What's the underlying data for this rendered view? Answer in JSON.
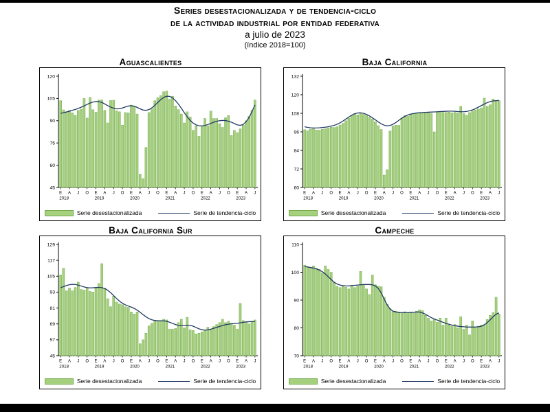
{
  "page": {
    "title_line1": "Series desestacionalizada y de tendencia-ciclo",
    "title_line2": "de la actividad industrial por entidad federativa",
    "subtitle": "a julio de 2023",
    "note": "(índice 2018=100)"
  },
  "legend": {
    "bars_label": "Serie desestacionalizada",
    "line_label": "Serie de tendencia-ciclo"
  },
  "colors": {
    "bar_fill": "#a5d07e",
    "bar_stroke": "#76ab4e",
    "trend_line": "#203a63",
    "axis": "#000000"
  },
  "chart_data": [
    {
      "type": "bar+line",
      "title": "Aguascalientes",
      "ylim": [
        45,
        120
      ],
      "yticks": [
        45,
        60,
        75,
        90,
        105,
        120
      ],
      "x_start": "2018-01",
      "x_end": "2023-07",
      "x_tick_letters": [
        "E",
        "A",
        "J",
        "O"
      ],
      "years": [
        2018,
        2019,
        2020,
        2021,
        2022,
        2023
      ],
      "series": [
        {
          "name": "Serie desestacionalizada",
          "kind": "bar",
          "values": [
            103.5,
            97.3,
            96,
            97,
            95.3,
            93.6,
            97,
            97.7,
            105,
            91.8,
            105.7,
            97.4,
            95.7,
            104,
            104,
            97,
            88.5,
            103.7,
            103.8,
            96.7,
            96,
            87,
            95.5,
            95.3,
            100.5,
            99.5,
            94.5,
            54,
            51,
            72,
            95.5,
            98,
            103.5,
            105.5,
            107,
            109.5,
            110,
            104.5,
            106.5,
            100,
            97.5,
            94.5,
            88.5,
            96,
            92.5,
            83.5,
            86.5,
            79.5,
            86,
            91.5,
            86.5,
            96.5,
            91.5,
            91.5,
            88,
            85.5,
            92,
            93.5,
            80,
            83.5,
            82,
            84.5,
            87,
            90,
            93,
            97,
            104
          ]
        },
        {
          "name": "Serie de tendencia-ciclo",
          "kind": "line",
          "values": [
            95,
            95.4,
            95.9,
            96.4,
            97,
            97.6,
            98.3,
            99.1,
            100,
            101,
            101.9,
            102.6,
            103,
            102.9,
            102.3,
            101.3,
            100.2,
            99.2,
            98.4,
            98,
            98.1,
            98.6,
            99.3,
            99.9,
            100.1,
            99.8,
            99,
            98,
            97.2,
            97,
            97.5,
            98.7,
            100.4,
            102.3,
            104.2,
            105.7,
            106.5,
            106.4,
            105.4,
            103.6,
            101.2,
            98.4,
            95.4,
            92.6,
            90.2,
            88.4,
            87.2,
            86.6,
            86.5,
            86.8,
            87.4,
            88.2,
            89,
            89.6,
            90,
            90.2,
            90.1,
            89.7,
            89,
            88.1,
            87.2,
            86.9,
            87.5,
            89.3,
            92.2,
            96.2,
            100.6
          ]
        }
      ]
    },
    {
      "type": "bar+line",
      "title": "Baja California",
      "ylim": [
        60,
        132
      ],
      "yticks": [
        60,
        72,
        84,
        96,
        108,
        120,
        132
      ],
      "x_start": "2018-01",
      "x_end": "2023-07",
      "x_tick_letters": [
        "E",
        "A",
        "J",
        "O"
      ],
      "years": [
        2018,
        2019,
        2020,
        2021,
        2022,
        2023
      ],
      "series": [
        {
          "name": "Serie desestacionalizada",
          "kind": "bar",
          "values": [
            97.4,
            96.7,
            97.7,
            98,
            97.2,
            97.1,
            97.7,
            98,
            98.5,
            99,
            98.8,
            99.3,
            100.4,
            101.5,
            103.2,
            104.8,
            106.6,
            107.9,
            107,
            108.3,
            107.3,
            106.6,
            105.5,
            104.3,
            102.5,
            100,
            97.5,
            68,
            71.5,
            96.5,
            99.8,
            100.3,
            100.2,
            105,
            106.5,
            106,
            107.5,
            107.8,
            108.2,
            108.5,
            108.3,
            108.6,
            108.4,
            107.8,
            96,
            108.8,
            109.3,
            108.6,
            108.5,
            108.8,
            108.3,
            108.6,
            108.2,
            112.5,
            107.8,
            106.8,
            108.5,
            109.5,
            110.2,
            110.8,
            111.5,
            117.8,
            112.5,
            113.5,
            117.2,
            115.8,
            116.2
          ]
        },
        {
          "name": "Serie de tendencia-ciclo",
          "kind": "line",
          "values": [
            99.3,
            98.9,
            98.6,
            98.5,
            98.5,
            98.6,
            98.8,
            99,
            99.3,
            99.7,
            100.2,
            100.9,
            101.8,
            103,
            104.3,
            105.6,
            106.8,
            107.7,
            108.2,
            108.3,
            108,
            107.3,
            106.3,
            105.1,
            103.8,
            102.4,
            101.2,
            100.3,
            99.9,
            100.1,
            100.9,
            102.1,
            103.5,
            104.9,
            106,
            106.9,
            107.5,
            107.9,
            108.2,
            108.4,
            108.5,
            108.6,
            108.7,
            108.8,
            108.9,
            109,
            109.1,
            109.2,
            109.3,
            109.4,
            109.4,
            109.3,
            109.1,
            109,
            109,
            109.2,
            109.6,
            110.2,
            111,
            112,
            113,
            114,
            114.9,
            115.6,
            116,
            116.2,
            116.3
          ]
        }
      ]
    },
    {
      "type": "bar+line",
      "title": "Baja California Sur",
      "ylim": [
        45,
        129
      ],
      "yticks": [
        45,
        57,
        69,
        81,
        93,
        105,
        117,
        129
      ],
      "x_start": "2018-01",
      "x_end": "2023-07",
      "x_tick_letters": [
        "E",
        "A",
        "J",
        "O"
      ],
      "years": [
        2018,
        2019,
        2020,
        2021,
        2022,
        2023
      ],
      "series": [
        {
          "name": "Serie desestacionalizada",
          "kind": "bar",
          "values": [
            106,
            111,
            94,
            96,
            94,
            96.5,
            100.5,
            95,
            94.5,
            96,
            93.5,
            93,
            96,
            99.5,
            114.5,
            96,
            88,
            82,
            90,
            85.5,
            84,
            83.5,
            82,
            81.5,
            78,
            76.5,
            78,
            54,
            57,
            62,
            67.5,
            69.5,
            71,
            71.5,
            71,
            72.5,
            72,
            65,
            65,
            65.5,
            70,
            72.5,
            66,
            74,
            64.5,
            64,
            61.5,
            62,
            63,
            64.5,
            66.5,
            64.5,
            67,
            68.5,
            70,
            72.5,
            70,
            71,
            69.5,
            68,
            65,
            84.5,
            71.5,
            70.5,
            69,
            71,
            72
          ]
        },
        {
          "name": "Serie de tendencia-ciclo",
          "kind": "line",
          "values": [
            96.3,
            97.2,
            98,
            98.6,
            98.9,
            98.8,
            98.3,
            97.6,
            96.9,
            96.4,
            96.2,
            96.3,
            96.5,
            96.6,
            96.4,
            95.7,
            94.4,
            92.6,
            90.4,
            88.2,
            86.2,
            84.6,
            83.4,
            82.5,
            81.7,
            80.7,
            79.4,
            77.8,
            76,
            74.4,
            73,
            72.1,
            71.6,
            71.4,
            71.4,
            71.3,
            71,
            70.3,
            69.4,
            68.5,
            67.9,
            67.7,
            67.8,
            68,
            67.9,
            67.3,
            66.3,
            65.3,
            64.6,
            64.3,
            64.5,
            65,
            65.7,
            66.4,
            67.1,
            67.8,
            68.4,
            68.8,
            69.1,
            69.3,
            69.5,
            69.8,
            70.2,
            70.5,
            70.7,
            70.8,
            70.9
          ]
        }
      ]
    },
    {
      "type": "bar+line",
      "title": "Campeche",
      "ylim": [
        70,
        110
      ],
      "yticks": [
        70,
        80,
        90,
        100,
        110
      ],
      "x_start": "2018-01",
      "x_end": "2023-07",
      "x_tick_letters": [
        "E",
        "A",
        "J",
        "O"
      ],
      "years": [
        2018,
        2019,
        2020,
        2021,
        2022,
        2023
      ],
      "series": [
        {
          "name": "Serie desestacionalizada",
          "kind": "bar",
          "values": [
            102.5,
            102,
            101.7,
            102.3,
            101.4,
            101,
            99.7,
            102.3,
            101,
            100,
            96.5,
            95,
            94.5,
            95.2,
            94.6,
            94,
            95.3,
            94.5,
            95,
            100.3,
            95.5,
            94,
            92,
            99,
            95.5,
            95,
            94.8,
            91,
            88.5,
            87,
            85.8,
            86,
            85.7,
            85.5,
            85.8,
            85.5,
            85.5,
            85.2,
            86,
            86.5,
            86.2,
            84.5,
            83.5,
            82.5,
            83.2,
            82,
            83.5,
            81,
            83.5,
            81,
            80.5,
            81.2,
            80,
            84,
            79.5,
            81,
            77.5,
            82.5,
            80,
            80.6,
            81,
            81.2,
            83,
            84.5,
            85.5,
            91,
            85
          ]
        },
        {
          "name": "Serie de tendencia-ciclo",
          "kind": "line",
          "values": [
            102.1,
            101.9,
            101.7,
            101.5,
            101.2,
            100.8,
            100.2,
            99.4,
            98.4,
            97.4,
            96.4,
            95.8,
            95.4,
            95.2,
            95.1,
            95.1,
            95.2,
            95.3,
            95.4,
            95.5,
            95.6,
            95.6,
            95.6,
            95.5,
            95.1,
            94.2,
            92.6,
            90.4,
            88.3,
            86.8,
            86,
            85.7,
            85.6,
            85.5,
            85.5,
            85.5,
            85.6,
            85.6,
            85.7,
            85.7,
            85.4,
            84.9,
            84.3,
            83.7,
            83.2,
            82.8,
            82.4,
            82,
            81.6,
            81.3,
            81,
            80.8,
            80.6,
            80.5,
            80.4,
            80.3,
            80.3,
            80.3,
            80.3,
            80.4,
            80.6,
            81.1,
            81.9,
            82.9,
            84,
            84.9,
            85.4
          ]
        }
      ]
    }
  ]
}
